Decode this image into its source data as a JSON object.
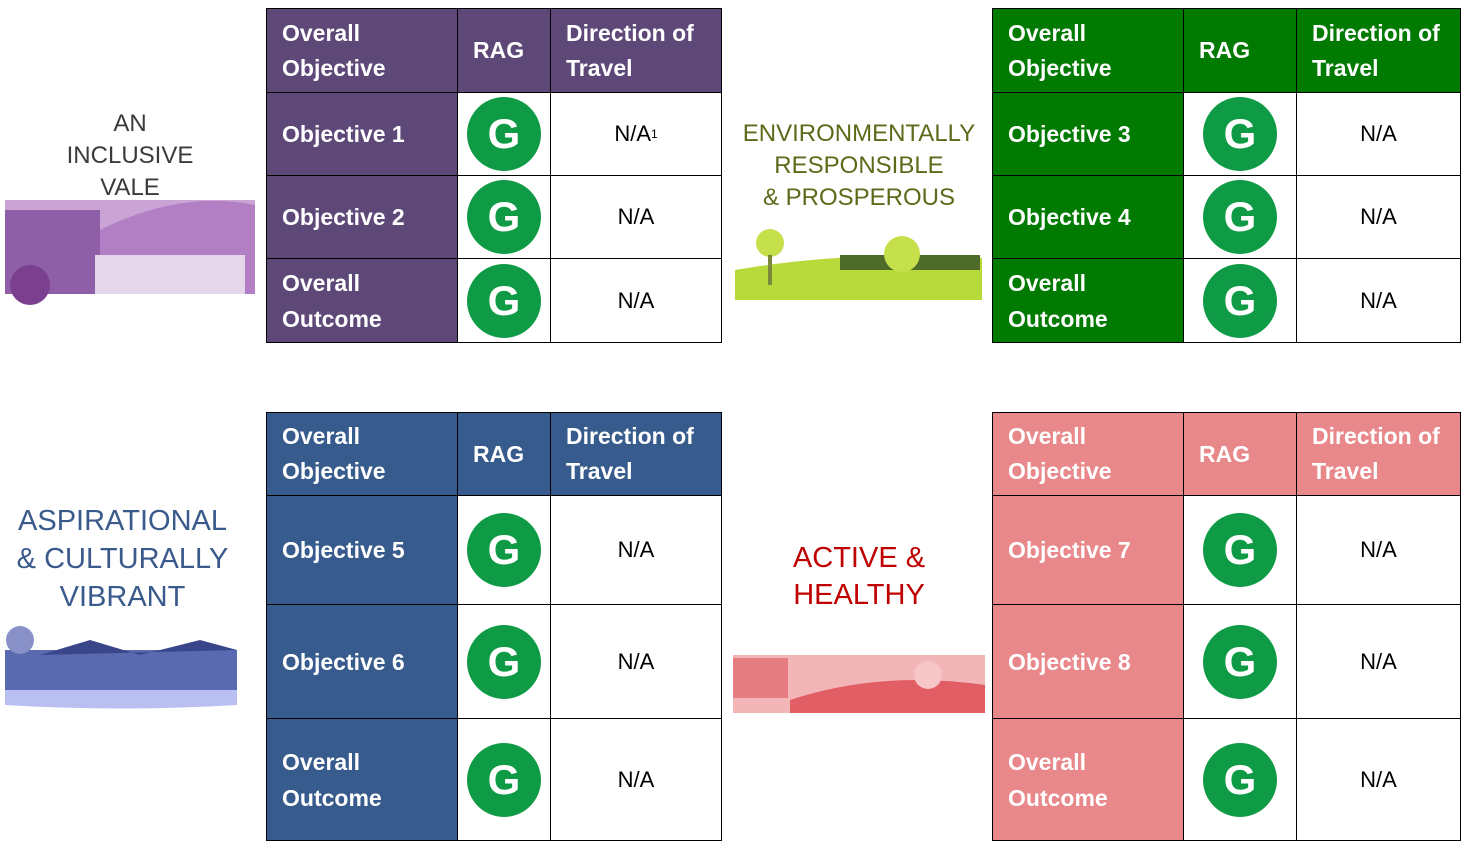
{
  "sections": [
    {
      "title": [
        "AN",
        "INCLUSIVE",
        "VALE"
      ],
      "header": [
        "Overall Objective",
        "RAG",
        "Direction of Travel"
      ],
      "rows": [
        {
          "objective": "Objective 1",
          "rag": "G",
          "direction": "N/A",
          "footnote": "1"
        },
        {
          "objective": "Objective 2",
          "rag": "G",
          "direction": "N/A"
        },
        {
          "objective": "Overall Outcome",
          "rag": "G",
          "direction": "N/A"
        }
      ]
    },
    {
      "title": [
        "ENVIRONMENTALLY",
        "RESPONSIBLE",
        "& PROSPEROUS"
      ],
      "header": [
        "Overall Objective",
        "RAG",
        "Direction of Travel"
      ],
      "rows": [
        {
          "objective": "Objective 3",
          "rag": "G",
          "direction": "N/A"
        },
        {
          "objective": "Objective 4",
          "rag": "G",
          "direction": "N/A"
        },
        {
          "objective": "Overall Outcome",
          "rag": "G",
          "direction": "N/A"
        }
      ]
    },
    {
      "title": [
        "ASPIRATIONAL",
        "& CULTURALLY",
        "VIBRANT"
      ],
      "header": [
        "Overall Objective",
        "RAG",
        "Direction of Travel"
      ],
      "rows": [
        {
          "objective": "Objective 5",
          "rag": "G",
          "direction": "N/A"
        },
        {
          "objective": "Objective 6",
          "rag": "G",
          "direction": "N/A"
        },
        {
          "objective": "Overall Outcome",
          "rag": "G",
          "direction": "N/A"
        }
      ]
    },
    {
      "title": [
        "ACTIVE &",
        "HEALTHY"
      ],
      "header": [
        "Overall Objective",
        "RAG",
        "Direction of Travel"
      ],
      "rows": [
        {
          "objective": "Objective 7",
          "rag": "G",
          "direction": "N/A"
        },
        {
          "objective": "Objective 8",
          "rag": "G",
          "direction": "N/A"
        },
        {
          "objective": "Overall Outcome",
          "rag": "G",
          "direction": "N/A"
        }
      ]
    }
  ]
}
